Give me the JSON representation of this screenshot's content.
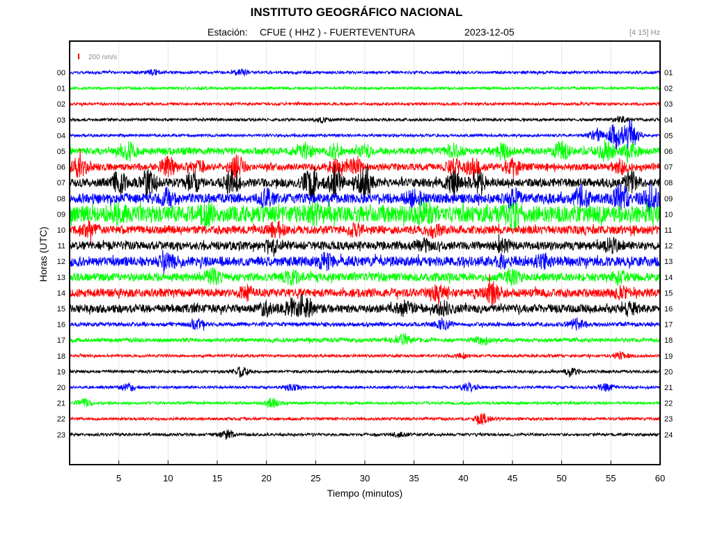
{
  "header": {
    "title": "INSTITUTO GEOGRÁFICO NACIONAL",
    "station_label": "Estación:",
    "station_name": "CFUE ( HHZ ) - FUERTEVENTURA",
    "date": "2023-12-05",
    "filter": "[4 15] Hz"
  },
  "chart_data": {
    "type": "line",
    "title": "INSTITUTO GEOGRÁFICO NACIONAL",
    "xlabel": "Tiempo (minutos)",
    "ylabel": "Horas (UTC)",
    "xlim": [
      0,
      60
    ],
    "x_ticks": [
      5,
      10,
      15,
      20,
      25,
      30,
      35,
      40,
      45,
      50,
      55,
      60
    ],
    "grid": true,
    "scale_bar": {
      "label": "200 nm/s",
      "color": "#ff0000"
    },
    "left_hour_labels": [
      "00",
      "01",
      "02",
      "03",
      "04",
      "05",
      "06",
      "07",
      "08",
      "09",
      "10",
      "11",
      "12",
      "13",
      "14",
      "15",
      "16",
      "17",
      "18",
      "19",
      "20",
      "21",
      "22",
      "23"
    ],
    "right_hour_labels": [
      "01",
      "02",
      "03",
      "04",
      "05",
      "06",
      "07",
      "08",
      "09",
      "10",
      "11",
      "12",
      "13",
      "14",
      "15",
      "16",
      "17",
      "18",
      "19",
      "20",
      "21",
      "22",
      "23",
      "24"
    ],
    "trace_colors": [
      "#0000ff",
      "#00ff00",
      "#ff0000",
      "#000000"
    ],
    "traces": [
      {
        "hour": "00",
        "base": 2,
        "events": [
          [
            17.5,
            4
          ],
          [
            8.5,
            3
          ]
        ]
      },
      {
        "hour": "01",
        "base": 2,
        "events": []
      },
      {
        "hour": "02",
        "base": 2,
        "events": []
      },
      {
        "hour": "03",
        "base": 2,
        "events": [
          [
            56,
            4
          ],
          [
            25.5,
            3
          ]
        ]
      },
      {
        "hour": "04",
        "base": 2,
        "events": [
          [
            55.5,
            18
          ],
          [
            57,
            20
          ],
          [
            53.5,
            8
          ]
        ]
      },
      {
        "hour": "05",
        "base": 5,
        "events": [
          [
            24,
            7
          ],
          [
            27,
            8
          ],
          [
            30,
            6
          ],
          [
            39,
            9
          ],
          [
            44,
            10
          ],
          [
            50,
            12
          ],
          [
            54.5,
            12
          ],
          [
            57,
            9
          ],
          [
            6,
            10
          ]
        ]
      },
      {
        "hour": "06",
        "base": 5,
        "events": [
          [
            1,
            12
          ],
          [
            10,
            12
          ],
          [
            13,
            8
          ],
          [
            17,
            14
          ],
          [
            27,
            10
          ],
          [
            29,
            9
          ],
          [
            39,
            9
          ],
          [
            41,
            12
          ],
          [
            45,
            12
          ],
          [
            56,
            8
          ]
        ]
      },
      {
        "hour": "07",
        "base": 6,
        "events": [
          [
            5,
            14
          ],
          [
            8,
            16
          ],
          [
            12.5,
            12
          ],
          [
            16.5,
            14
          ],
          [
            24.5,
            18
          ],
          [
            27,
            20
          ],
          [
            30,
            18
          ],
          [
            39,
            12
          ],
          [
            41.5,
            16
          ],
          [
            57,
            12
          ]
        ]
      },
      {
        "hour": "08",
        "base": 7,
        "events": [
          [
            10,
            10
          ],
          [
            20,
            9
          ],
          [
            35,
            10
          ],
          [
            45,
            11
          ],
          [
            52,
            13
          ],
          [
            56,
            15
          ],
          [
            59,
            18
          ]
        ]
      },
      {
        "hour": "09",
        "base": 12,
        "events": [
          [
            5,
            8
          ],
          [
            14,
            8
          ],
          [
            25,
            8
          ],
          [
            36,
            7
          ],
          [
            45,
            10
          ]
        ]
      },
      {
        "hour": "10",
        "base": 6,
        "events": [
          [
            2,
            7
          ],
          [
            21,
            8
          ],
          [
            29,
            7
          ],
          [
            37,
            7
          ]
        ]
      },
      {
        "hour": "11",
        "base": 6,
        "events": [
          [
            20.5,
            8
          ],
          [
            36,
            6
          ],
          [
            44,
            7
          ],
          [
            55,
            7
          ]
        ]
      },
      {
        "hour": "12",
        "base": 7,
        "events": [
          [
            10,
            8
          ],
          [
            26,
            8
          ],
          [
            44,
            6
          ],
          [
            48,
            6
          ]
        ]
      },
      {
        "hour": "13",
        "base": 6,
        "events": [
          [
            14.5,
            8
          ],
          [
            22.5,
            7
          ],
          [
            45,
            7
          ],
          [
            56,
            7
          ]
        ]
      },
      {
        "hour": "14",
        "base": 6,
        "events": [
          [
            18,
            7
          ],
          [
            37.5,
            8
          ],
          [
            43,
            14
          ],
          [
            56,
            6
          ]
        ]
      },
      {
        "hour": "15",
        "base": 6,
        "events": [
          [
            20,
            7
          ],
          [
            22.5,
            10
          ],
          [
            24,
            10
          ],
          [
            34,
            7
          ],
          [
            38,
            7
          ],
          [
            57,
            6
          ]
        ]
      },
      {
        "hour": "16",
        "base": 3,
        "events": [
          [
            13,
            6
          ],
          [
            38,
            6
          ],
          [
            51.5,
            7
          ]
        ]
      },
      {
        "hour": "17",
        "base": 3,
        "events": [
          [
            34,
            7
          ],
          [
            42,
            5
          ]
        ]
      },
      {
        "hour": "18",
        "base": 2,
        "events": [
          [
            56,
            5
          ],
          [
            40,
            3
          ]
        ]
      },
      {
        "hour": "19",
        "base": 2,
        "events": [
          [
            17.5,
            7
          ],
          [
            51,
            4
          ]
        ]
      },
      {
        "hour": "20",
        "base": 2,
        "events": [
          [
            6,
            5
          ],
          [
            22.5,
            5
          ],
          [
            40.5,
            6
          ],
          [
            54.5,
            5
          ]
        ]
      },
      {
        "hour": "21",
        "base": 2,
        "events": [
          [
            1.5,
            5
          ],
          [
            20.5,
            6
          ]
        ]
      },
      {
        "hour": "22",
        "base": 2,
        "events": [
          [
            42,
            7
          ]
        ]
      },
      {
        "hour": "23",
        "base": 2,
        "events": [
          [
            16,
            6
          ],
          [
            33.5,
            3
          ]
        ]
      }
    ]
  }
}
